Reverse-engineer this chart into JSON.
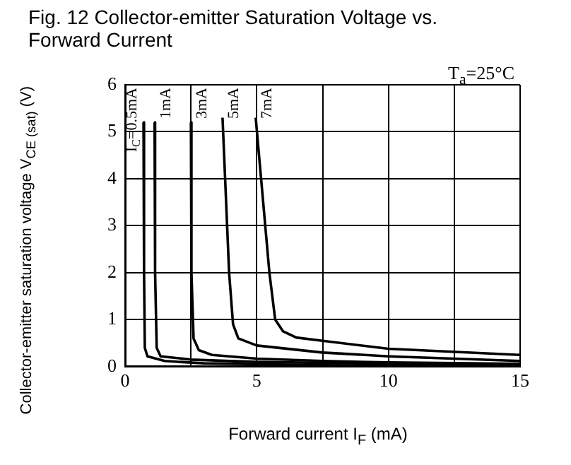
{
  "chart_data": {
    "type": "line",
    "title": "Fig. 12 Collector-emitter Saturation Voltage vs. Forward Current",
    "xlabel": "Forward current I$_{F}$ (mA)",
    "ylabel": "Collector-emitter saturation voltage V$_{CE (sat)}$ (V)",
    "xlim": [
      0,
      15
    ],
    "xticks": [
      0,
      {
        "value": 2.5,
        "label": null
      },
      5,
      {
        "value": 7.5,
        "label": null
      },
      10,
      {
        "value": 12.5,
        "label": null
      },
      15
    ],
    "ylim": [
      0,
      6
    ],
    "yticks": [
      0,
      1,
      2,
      3,
      4,
      5,
      6
    ],
    "grid": true,
    "legend": false,
    "marker": "none",
    "line_style": "solid",
    "annotations": [
      "T$_{a}$=25°C"
    ],
    "series": [
      {
        "name": "I$_{C}$=0.5mA",
        "color": "#000000",
        "x": [
          0.7,
          0.72,
          0.75,
          0.85,
          1.5,
          3,
          7.5,
          15
        ],
        "values": [
          5.2,
          2,
          0.4,
          0.22,
          0.12,
          0.07,
          0.03,
          0.02
        ]
      },
      {
        "name": "1mA",
        "color": "#000000",
        "x": [
          1.12,
          1.14,
          1.2,
          1.35,
          2.5,
          5,
          10,
          15
        ],
        "values": [
          5.2,
          2,
          0.4,
          0.22,
          0.15,
          0.1,
          0.06,
          0.04
        ]
      },
      {
        "name": "3mA",
        "color": "#000000",
        "x": [
          2.5,
          2.52,
          2.6,
          2.8,
          3.3,
          5,
          7.5,
          10,
          15
        ],
        "values": [
          5.2,
          2,
          0.6,
          0.35,
          0.25,
          0.17,
          0.12,
          0.09,
          0.06
        ]
      },
      {
        "name": "5mA",
        "color": "#000000",
        "x": [
          3.7,
          3.95,
          4.1,
          4.3,
          5,
          7.5,
          10,
          15
        ],
        "values": [
          5.3,
          2,
          0.9,
          0.6,
          0.45,
          0.3,
          0.22,
          0.12
        ]
      },
      {
        "name": "7mA",
        "color": "#000000",
        "x": [
          4.96,
          5.48,
          5.7,
          6,
          6.5,
          7.5,
          10,
          15
        ],
        "values": [
          5.3,
          2,
          1,
          0.75,
          0.62,
          0.55,
          0.38,
          0.25
        ]
      }
    ]
  }
}
